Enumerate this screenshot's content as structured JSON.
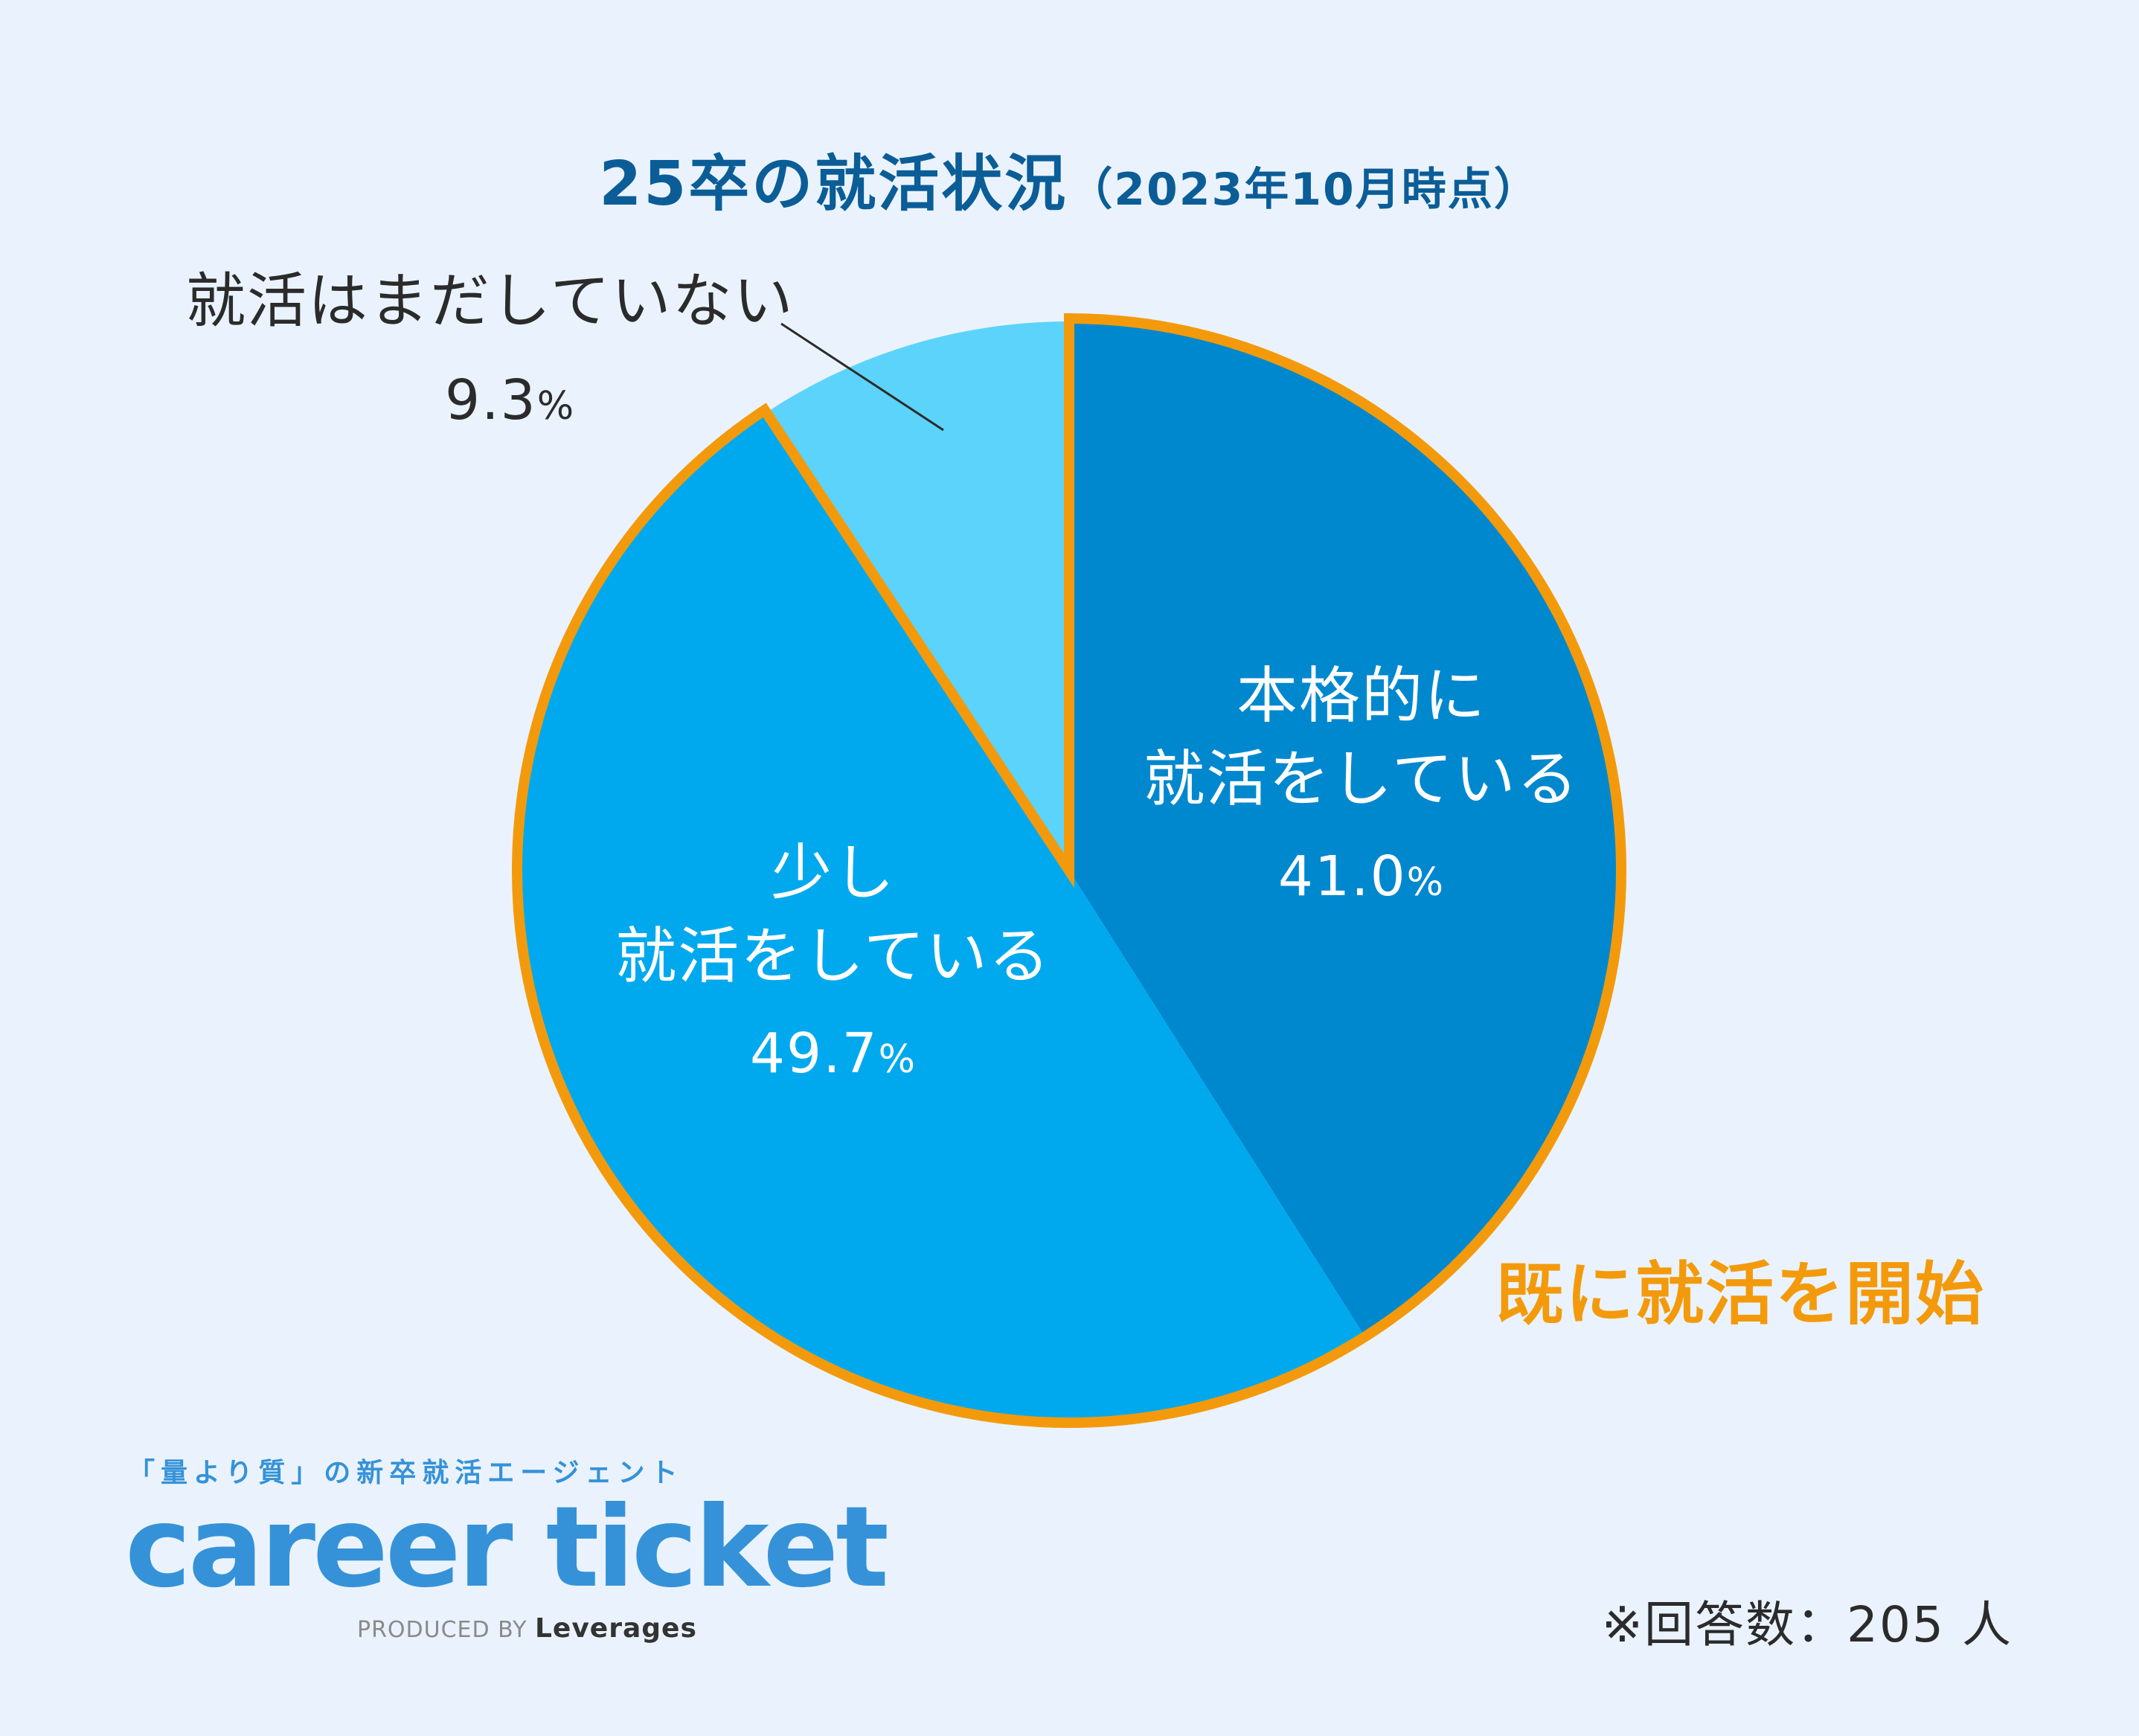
{
  "title": {
    "main": "25卒の就活状況",
    "sub": "（2023年10月時点）"
  },
  "chart_data": {
    "type": "pie",
    "title": "25卒の就活状況（2023年10月時点）",
    "unit": "%",
    "slices": [
      {
        "label_lines": [
          "本格的に",
          "就活をしている"
        ],
        "value": 41.0,
        "value_text": "41.0",
        "color": "#0088cf"
      },
      {
        "label_lines": [
          "少し",
          "就活をしている"
        ],
        "value": 49.7,
        "value_text": "49.7",
        "color": "#00a9ee"
      },
      {
        "label_lines": [
          "就活はまだしていない"
        ],
        "value": 9.3,
        "value_text": "9.3",
        "color": "#5cd3fb"
      }
    ],
    "highlight": {
      "label": "既に就活を開始",
      "color": "#f39a0c"
    }
  },
  "footer": {
    "tagline": "「量より質」の新卒就活エージェント",
    "logo": "career ticket",
    "produced_by": "PRODUCED BY",
    "company": "Leverages",
    "respondents": "※回答数：205 人"
  }
}
